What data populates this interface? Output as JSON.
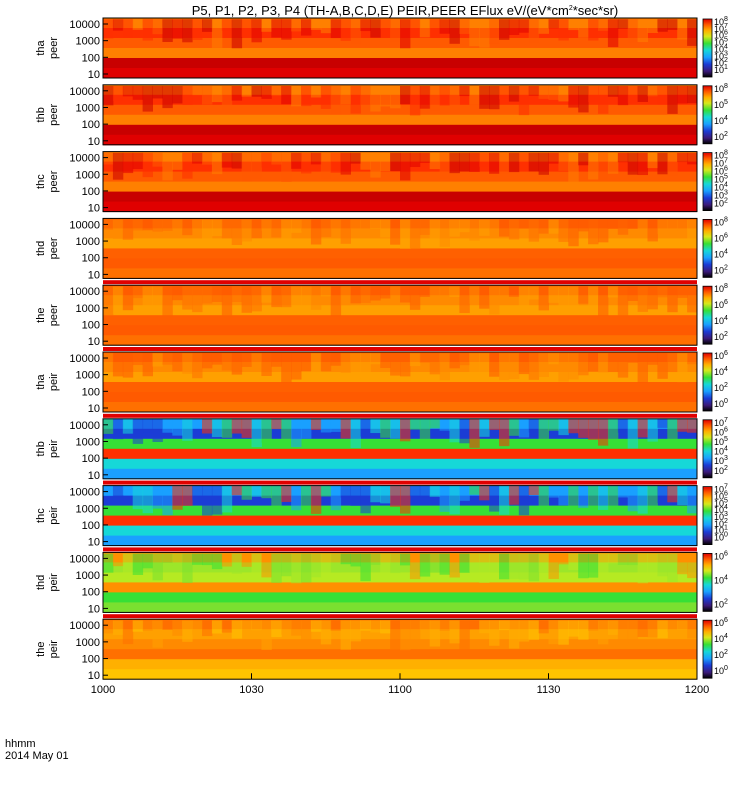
{
  "chart_data": {
    "type": "heatmap",
    "title": "P5, P1, P2, P3, P4 (TH-A,B,C,D,E) PEIR,PEER EFlux eV/(eV*cm",
    "title_sup": "2",
    "title_tail": "*sec*sr)",
    "x_label_top": "hhmm",
    "x_label_bottom": "2014 May 01",
    "x_ticks": [
      1000,
      1030,
      1100,
      1130,
      1200
    ],
    "x_tick_labels": [
      "1000",
      "1030",
      "1100",
      "1130",
      "1200"
    ],
    "x_range": [
      1000,
      1200
    ],
    "y_ticks": [
      "10",
      "100",
      "1000",
      "10000"
    ],
    "colormap": [
      "#000000",
      "#3b1a7a",
      "#1b3cd6",
      "#1aa0ff",
      "#16d8d8",
      "#36e036",
      "#d6e81c",
      "#ffb000",
      "#ff5a00",
      "#e00000"
    ],
    "panels": [
      {
        "probe": "tha",
        "species": "peer",
        "ylabel": "tha\npeer",
        "cb_ticks": [
          "10",
          "10",
          "10",
          "10",
          "10",
          "10",
          "10",
          "10"
        ],
        "cb_exp": [
          "8",
          "7",
          "6",
          "5",
          "4",
          "3",
          "2",
          "1"
        ],
        "dominant": "red",
        "has_flag": false
      },
      {
        "probe": "thb",
        "species": "peer",
        "ylabel": "thb\npeer",
        "cb_ticks": [
          "10",
          "10",
          "10",
          "10"
        ],
        "cb_exp": [
          "8",
          "5",
          "4",
          "2"
        ],
        "dominant": "red",
        "has_flag": false
      },
      {
        "probe": "thc",
        "species": "peer",
        "ylabel": "thc\npeer",
        "cb_ticks": [
          "10",
          "10",
          "10",
          "10",
          "10",
          "10",
          "10"
        ],
        "cb_exp": [
          "8",
          "7",
          "6",
          "5",
          "4",
          "3",
          "2"
        ],
        "dominant": "red",
        "has_flag": false
      },
      {
        "probe": "thd",
        "species": "peer",
        "ylabel": "thd\npeer",
        "cb_ticks": [
          "10",
          "10",
          "10",
          "10"
        ],
        "cb_exp": [
          "8",
          "6",
          "4",
          "2"
        ],
        "dominant": "orange",
        "has_flag": false
      },
      {
        "probe": "the",
        "species": "peer",
        "ylabel": "the\npeer",
        "cb_ticks": [
          "10",
          "10",
          "10",
          "10"
        ],
        "cb_exp": [
          "8",
          "6",
          "4",
          "2"
        ],
        "dominant": "orange",
        "has_flag": true
      },
      {
        "probe": "tha",
        "species": "peir",
        "ylabel": "tha\npeir",
        "cb_ticks": [
          "10",
          "10",
          "10",
          "10"
        ],
        "cb_exp": [
          "6",
          "4",
          "2",
          "0"
        ],
        "dominant": "orange",
        "has_flag": true
      },
      {
        "probe": "thb",
        "species": "peir",
        "ylabel": "thb\npeir",
        "cb_ticks": [
          "10",
          "10",
          "10",
          "10",
          "10",
          "10"
        ],
        "cb_exp": [
          "7",
          "6",
          "5",
          "4",
          "3",
          "2"
        ],
        "dominant": "cyan",
        "has_flag": true
      },
      {
        "probe": "thc",
        "species": "peir",
        "ylabel": "thc\npeir",
        "cb_ticks": [
          "10",
          "10",
          "10",
          "10",
          "10",
          "10",
          "10",
          "10"
        ],
        "cb_exp": [
          "7",
          "6",
          "5",
          "4",
          "3",
          "2",
          "1",
          "0"
        ],
        "dominant": "cyan",
        "has_flag": true
      },
      {
        "probe": "thd",
        "species": "peir",
        "ylabel": "thd\npeir",
        "cb_ticks": [
          "10",
          "10",
          "10"
        ],
        "cb_exp": [
          "6",
          "4",
          "2"
        ],
        "dominant": "green",
        "has_flag": true
      },
      {
        "probe": "the",
        "species": "peir",
        "ylabel": "the\npeir",
        "cb_ticks": [
          "10",
          "10",
          "10",
          "10"
        ],
        "cb_exp": [
          "6",
          "4",
          "2",
          "0"
        ],
        "dominant": "yellow",
        "has_flag": true
      }
    ]
  }
}
